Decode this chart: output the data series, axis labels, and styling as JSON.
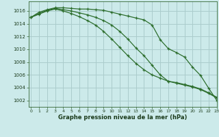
{
  "title": "Graphe pression niveau de la mer (hPa)",
  "bg_color": "#cceaea",
  "grid_color": "#aacccc",
  "line_color": "#2d6e2d",
  "xlim": [
    -0.3,
    23
  ],
  "ylim": [
    1001.0,
    1017.5
  ],
  "yticks": [
    1002,
    1004,
    1006,
    1008,
    1010,
    1012,
    1014,
    1016
  ],
  "xticks": [
    0,
    1,
    2,
    3,
    4,
    5,
    6,
    7,
    8,
    9,
    10,
    11,
    12,
    13,
    14,
    15,
    16,
    17,
    18,
    19,
    20,
    21,
    22,
    23
  ],
  "series": [
    [
      1015.0,
      1015.8,
      1016.2,
      1016.5,
      1016.5,
      1016.4,
      1016.3,
      1016.3,
      1016.2,
      1016.1,
      1015.8,
      1015.5,
      1015.2,
      1014.9,
      1014.6,
      1013.8,
      1011.5,
      1010.1,
      1009.5,
      1008.8,
      1007.2,
      1005.9,
      1003.9,
      1002.0
    ],
    [
      1015.0,
      1015.6,
      1016.1,
      1016.4,
      1016.2,
      1016.0,
      1015.7,
      1015.4,
      1015.0,
      1014.5,
      1013.8,
      1012.8,
      1011.6,
      1010.2,
      1009.0,
      1007.5,
      1006.0,
      1005.0,
      1004.8,
      1004.5,
      1004.2,
      1003.8,
      1003.2,
      1002.5
    ],
    [
      1015.0,
      1015.5,
      1016.0,
      1016.3,
      1016.0,
      1015.6,
      1015.1,
      1014.5,
      1013.8,
      1012.8,
      1011.6,
      1010.3,
      1009.0,
      1007.8,
      1006.8,
      1006.0,
      1005.5,
      1005.0,
      1004.7,
      1004.4,
      1004.1,
      1003.7,
      1003.1,
      1002.4
    ]
  ]
}
